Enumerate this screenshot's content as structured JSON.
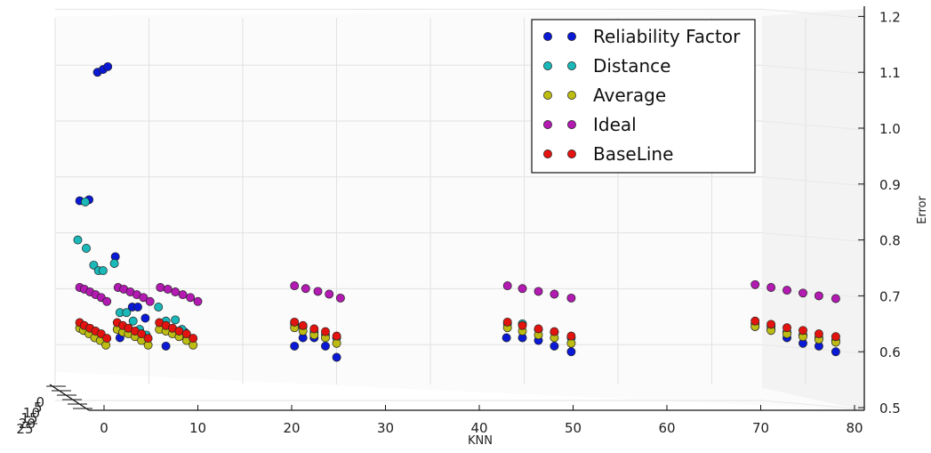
{
  "chart_data": {
    "type": "scatter",
    "projection": "3d",
    "xlabel": "KNN",
    "ylabel": "",
    "zlabel": "Error",
    "x_ticks": [
      "0",
      "10",
      "20",
      "30",
      "40",
      "50",
      "60",
      "70",
      "80"
    ],
    "y_ticks": [
      "0",
      "5",
      "10",
      "15",
      "20",
      "25"
    ],
    "z_ticks": [
      "0.5",
      "0.6",
      "0.7",
      "0.8",
      "0.9",
      "1.0",
      "1.1",
      "1.2"
    ],
    "xlim": [
      -5,
      80
    ],
    "zlim": [
      0.5,
      1.2
    ],
    "grid": true,
    "legend_position": "top-right",
    "colors": {
      "Reliability Factor": "#0a19d6",
      "Distance": "#1ab8b8",
      "Average": "#bcbc14",
      "Ideal": "#b21ab2",
      "BaseLine": "#e3140f"
    },
    "series": [
      {
        "name": "Reliability Factor",
        "points": [
          [
            -0.7,
            1.1
          ],
          [
            -0.1,
            1.105
          ],
          [
            0.4,
            1.11
          ],
          [
            -2.6,
            0.87
          ],
          [
            -1.6,
            0.872
          ],
          [
            1.2,
            0.77
          ],
          [
            3.0,
            0.68
          ],
          [
            3.6,
            0.68
          ],
          [
            4.4,
            0.66
          ],
          [
            1.7,
            0.625
          ],
          [
            6.6,
            0.61
          ],
          [
            8.6,
            0.635
          ],
          [
            20.3,
            0.61
          ],
          [
            21.2,
            0.625
          ],
          [
            22.4,
            0.625
          ],
          [
            23.6,
            0.61
          ],
          [
            24.8,
            0.59
          ],
          [
            42.9,
            0.625
          ],
          [
            44.6,
            0.625
          ],
          [
            46.3,
            0.62
          ],
          [
            48.0,
            0.61
          ],
          [
            49.8,
            0.6
          ],
          [
            69.4,
            0.645
          ],
          [
            71.1,
            0.64
          ],
          [
            72.8,
            0.625
          ],
          [
            74.5,
            0.615
          ],
          [
            76.2,
            0.61
          ],
          [
            78.0,
            0.6
          ]
        ]
      },
      {
        "name": "Distance",
        "points": [
          [
            -2.0,
            0.868
          ],
          [
            -2.8,
            0.8
          ],
          [
            -1.9,
            0.785
          ],
          [
            -1.1,
            0.755
          ],
          [
            -0.6,
            0.745
          ],
          [
            -0.1,
            0.745
          ],
          [
            1.1,
            0.758
          ],
          [
            1.7,
            0.67
          ],
          [
            2.4,
            0.67
          ],
          [
            3.1,
            0.655
          ],
          [
            3.8,
            0.64
          ],
          [
            4.5,
            0.63
          ],
          [
            5.8,
            0.68
          ],
          [
            6.6,
            0.655
          ],
          [
            7.6,
            0.657
          ],
          [
            8.3,
            0.64
          ],
          [
            8.8,
            0.63
          ],
          [
            20.3,
            0.65
          ],
          [
            21.2,
            0.645
          ],
          [
            22.4,
            0.635
          ],
          [
            23.6,
            0.63
          ],
          [
            24.8,
            0.625
          ],
          [
            43.0,
            0.65
          ],
          [
            44.6,
            0.65
          ],
          [
            46.3,
            0.64
          ],
          [
            48.0,
            0.635
          ],
          [
            49.8,
            0.625
          ],
          [
            69.4,
            0.65
          ],
          [
            71.1,
            0.645
          ],
          [
            72.8,
            0.635
          ],
          [
            74.5,
            0.63
          ],
          [
            76.2,
            0.625
          ],
          [
            78.0,
            0.62
          ]
        ]
      },
      {
        "name": "Average",
        "points": [
          [
            -2.6,
            0.642
          ],
          [
            -2.2,
            0.638
          ],
          [
            -1.6,
            0.632
          ],
          [
            -1.0,
            0.625
          ],
          [
            -0.4,
            0.62
          ],
          [
            0.2,
            0.612
          ],
          [
            1.4,
            0.64
          ],
          [
            2.0,
            0.635
          ],
          [
            2.6,
            0.632
          ],
          [
            3.3,
            0.627
          ],
          [
            4.0,
            0.62
          ],
          [
            4.7,
            0.612
          ],
          [
            5.9,
            0.64
          ],
          [
            6.6,
            0.637
          ],
          [
            7.3,
            0.632
          ],
          [
            8.0,
            0.627
          ],
          [
            8.8,
            0.62
          ],
          [
            9.5,
            0.612
          ],
          [
            20.3,
            0.643
          ],
          [
            21.2,
            0.637
          ],
          [
            22.4,
            0.63
          ],
          [
            23.6,
            0.625
          ],
          [
            24.8,
            0.615
          ],
          [
            43.0,
            0.643
          ],
          [
            44.6,
            0.637
          ],
          [
            46.3,
            0.63
          ],
          [
            48.0,
            0.625
          ],
          [
            49.8,
            0.615
          ],
          [
            69.4,
            0.645
          ],
          [
            71.1,
            0.638
          ],
          [
            72.8,
            0.632
          ],
          [
            74.5,
            0.627
          ],
          [
            76.2,
            0.622
          ],
          [
            78.0,
            0.617
          ]
        ]
      },
      {
        "name": "Ideal",
        "points": [
          [
            -2.6,
            0.715
          ],
          [
            -2.1,
            0.712
          ],
          [
            -1.5,
            0.707
          ],
          [
            -0.9,
            0.702
          ],
          [
            -0.3,
            0.697
          ],
          [
            0.3,
            0.69
          ],
          [
            1.5,
            0.715
          ],
          [
            2.1,
            0.712
          ],
          [
            2.8,
            0.707
          ],
          [
            3.5,
            0.702
          ],
          [
            4.2,
            0.697
          ],
          [
            4.9,
            0.69
          ],
          [
            6.0,
            0.715
          ],
          [
            6.8,
            0.712
          ],
          [
            7.6,
            0.707
          ],
          [
            8.4,
            0.702
          ],
          [
            9.2,
            0.697
          ],
          [
            10.0,
            0.69
          ],
          [
            20.3,
            0.718
          ],
          [
            21.5,
            0.713
          ],
          [
            22.8,
            0.708
          ],
          [
            24.0,
            0.703
          ],
          [
            25.2,
            0.696
          ],
          [
            43.0,
            0.718
          ],
          [
            44.6,
            0.713
          ],
          [
            46.3,
            0.708
          ],
          [
            48.0,
            0.703
          ],
          [
            49.8,
            0.696
          ],
          [
            69.4,
            0.72
          ],
          [
            71.1,
            0.715
          ],
          [
            72.8,
            0.71
          ],
          [
            74.5,
            0.705
          ],
          [
            76.2,
            0.7
          ],
          [
            78.0,
            0.695
          ]
        ]
      },
      {
        "name": "BaseLine",
        "points": [
          [
            -2.6,
            0.652
          ],
          [
            -2.1,
            0.647
          ],
          [
            -1.5,
            0.642
          ],
          [
            -0.9,
            0.637
          ],
          [
            -0.3,
            0.632
          ],
          [
            0.3,
            0.624
          ],
          [
            1.4,
            0.652
          ],
          [
            2.0,
            0.647
          ],
          [
            2.6,
            0.642
          ],
          [
            3.3,
            0.637
          ],
          [
            4.0,
            0.632
          ],
          [
            4.7,
            0.624
          ],
          [
            5.9,
            0.652
          ],
          [
            6.6,
            0.647
          ],
          [
            7.3,
            0.642
          ],
          [
            8.0,
            0.637
          ],
          [
            8.8,
            0.632
          ],
          [
            9.5,
            0.624
          ],
          [
            20.3,
            0.653
          ],
          [
            21.2,
            0.647
          ],
          [
            22.4,
            0.641
          ],
          [
            23.6,
            0.636
          ],
          [
            24.8,
            0.628
          ],
          [
            43.0,
            0.653
          ],
          [
            44.6,
            0.647
          ],
          [
            46.3,
            0.641
          ],
          [
            48.0,
            0.636
          ],
          [
            49.8,
            0.628
          ],
          [
            69.4,
            0.655
          ],
          [
            71.1,
            0.649
          ],
          [
            72.8,
            0.643
          ],
          [
            74.5,
            0.638
          ],
          [
            76.2,
            0.632
          ],
          [
            78.0,
            0.627
          ]
        ]
      }
    ]
  }
}
